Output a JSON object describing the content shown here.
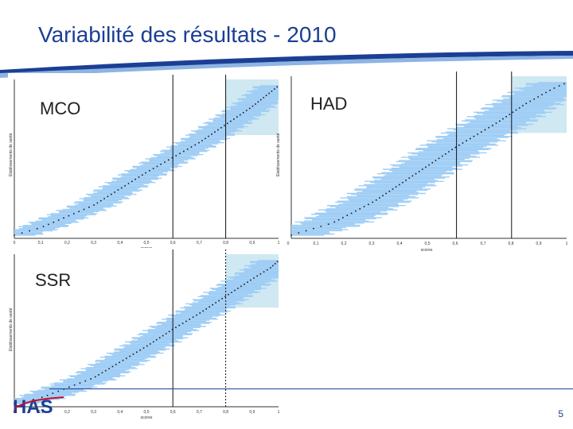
{
  "slide": {
    "title": "Variabilité des résultats - 2010",
    "page_number": "5",
    "logo_text": "HAS"
  },
  "panels": [
    {
      "id": "mco",
      "label": "MCO",
      "ylabel": "Etablissements de santé",
      "ylabel_right": "Etablissements de santé",
      "xlabel": "scores",
      "ticks": [
        "0",
        "0,1",
        "0,2",
        "0,3",
        "0,4",
        "0,5",
        "0,6",
        "0,7",
        "0,8",
        "0,9",
        "1"
      ]
    },
    {
      "id": "had",
      "label": "HAD",
      "ylabel": "",
      "xlabel": "scores",
      "ticks": [
        "0",
        "0,1",
        "0,2",
        "0,3",
        "0,4",
        "0,5",
        "0,6",
        "0,7",
        "0,8",
        "0,9",
        "1"
      ]
    },
    {
      "id": "ssr",
      "label": "SSR",
      "ylabel": "Etablissements de santé",
      "xlabel": "scores",
      "ticks": [
        "0",
        "0,1",
        "0,2",
        "0,3",
        "0,4",
        "0,5",
        "0,6",
        "0,7",
        "0,8",
        "0,9",
        "1"
      ]
    }
  ],
  "chart_data": [
    {
      "type": "scatter",
      "name": "MCO",
      "description_points": "sorted establishment scores with confidence intervals",
      "x_range": [
        0,
        1
      ],
      "reference_lines": [
        0.6,
        0.8
      ],
      "shaded_zone": [
        0.8,
        1.0
      ],
      "curve": [
        [
          0.0,
          0.0
        ],
        [
          0.1,
          0.05
        ],
        [
          0.3,
          0.2
        ],
        [
          0.5,
          0.42
        ],
        [
          0.6,
          0.52
        ],
        [
          0.7,
          0.62
        ],
        [
          0.8,
          0.74
        ],
        [
          0.9,
          0.86
        ],
        [
          0.95,
          0.93
        ],
        [
          1.0,
          1.0
        ]
      ],
      "ci_halfwidth": 0.08,
      "colors": {
        "band": "#9fcdf5",
        "points": "#1a1a1a",
        "zone": "#cfe8f2"
      }
    },
    {
      "type": "scatter",
      "name": "HAD",
      "x_range": [
        0,
        1
      ],
      "reference_lines": [
        0.6,
        0.8
      ],
      "shaded_zone": [
        0.8,
        1.0
      ],
      "curve": [
        [
          0.0,
          0.0
        ],
        [
          0.15,
          0.08
        ],
        [
          0.3,
          0.22
        ],
        [
          0.45,
          0.4
        ],
        [
          0.6,
          0.58
        ],
        [
          0.75,
          0.74
        ],
        [
          0.85,
          0.86
        ],
        [
          0.95,
          0.96
        ],
        [
          1.0,
          1.0
        ]
      ],
      "ci_halfwidth": 0.12,
      "colors": {
        "band": "#9fcdf5",
        "points": "#1a1a1a",
        "zone": "#cfe8f2"
      }
    },
    {
      "type": "scatter",
      "name": "SSR",
      "x_range": [
        0,
        1
      ],
      "reference_lines": [
        0.6,
        0.8
      ],
      "shaded_zone": [
        0.8,
        1.0
      ],
      "curve": [
        [
          0.0,
          0.0
        ],
        [
          0.1,
          0.04
        ],
        [
          0.3,
          0.18
        ],
        [
          0.5,
          0.4
        ],
        [
          0.6,
          0.52
        ],
        [
          0.7,
          0.63
        ],
        [
          0.8,
          0.75
        ],
        [
          0.9,
          0.87
        ],
        [
          0.97,
          0.95
        ],
        [
          1.0,
          1.0
        ]
      ],
      "ci_halfwidth": 0.09,
      "colors": {
        "band": "#9fcdf5",
        "points": "#1a1a1a",
        "zone": "#cfe8f2"
      }
    }
  ]
}
